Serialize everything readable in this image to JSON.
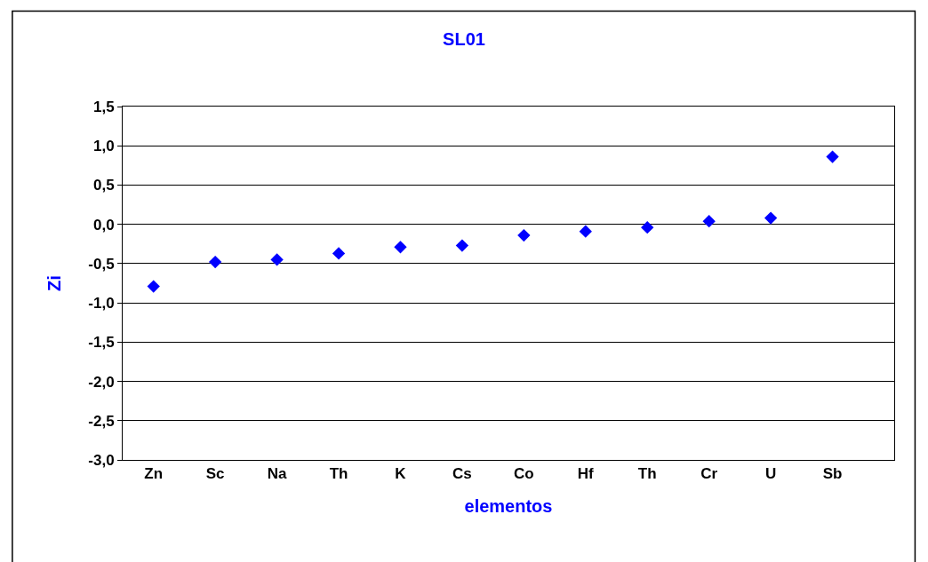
{
  "chart_data": {
    "type": "scatter",
    "title": "SL01",
    "xlabel": "elementos",
    "ylabel": "Zi",
    "categories": [
      "Zn",
      "Sc",
      "Na",
      "Th",
      "K",
      "Cs",
      "Co",
      "Hf",
      "Th",
      "Cr",
      "U",
      "Sb"
    ],
    "series": [
      {
        "color": "#0000ff",
        "values": [
          -0.79,
          -0.48,
          -0.45,
          -0.37,
          -0.29,
          -0.27,
          -0.14,
          -0.09,
          -0.04,
          0.04,
          0.08,
          0.86
        ]
      }
    ],
    "ylim": [
      -3.0,
      1.5
    ],
    "yticks": [
      {
        "value": -3.0,
        "label": "-3,0"
      },
      {
        "value": -2.5,
        "label": "-2,5"
      },
      {
        "value": -2.0,
        "label": "-2,0"
      },
      {
        "value": -1.5,
        "label": "-1,5"
      },
      {
        "value": -1.0,
        "label": "-1,0"
      },
      {
        "value": -0.5,
        "label": "-0,5"
      },
      {
        "value": 0.0,
        "label": "0,0"
      },
      {
        "value": 0.5,
        "label": "0,5"
      },
      {
        "value": 1.0,
        "label": "1,0"
      },
      {
        "value": 1.5,
        "label": "1,5"
      }
    ],
    "grid": "y",
    "marker": "diamond"
  }
}
